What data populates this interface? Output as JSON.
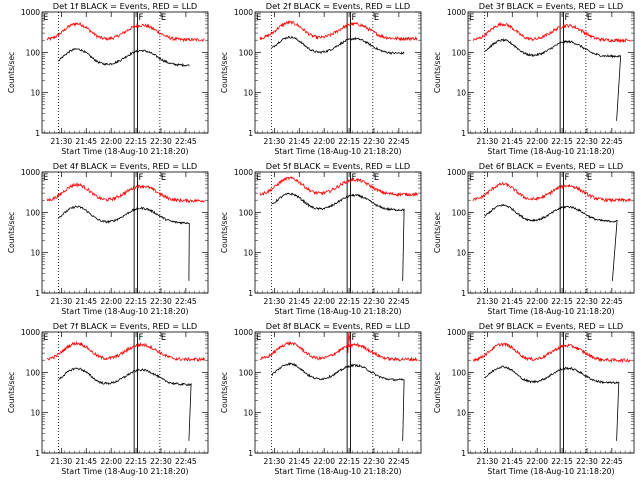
{
  "chart_data": {
    "type": "line",
    "ylabel": "Counts/sec",
    "xlabel": "Start Time (18-Aug-10 21:18:20)",
    "yscale": "log",
    "ylim": [
      1,
      1000
    ],
    "ytick_labels": [
      "1",
      "10",
      "100",
      "1000"
    ],
    "xlim_minutes": [
      0,
      100
    ],
    "xtick_labels": [
      "21:30",
      "21:45",
      "22:00",
      "22:15",
      "22:30",
      "22:45"
    ],
    "xtick_minutes": [
      11.67,
      26.67,
      41.67,
      56.67,
      71.67,
      86.67
    ],
    "colors": {
      "events": "#000000",
      "lld": "#ff0000"
    },
    "marker_letters": [
      "F",
      "E"
    ],
    "panels": [
      {
        "title": "Det 1f BLACK = Events, RED = LLD",
        "events_base": 48,
        "lld_base": 205,
        "dip_start": null,
        "dip_end": null,
        "drop_at": null,
        "end_at": 89,
        "spike": false,
        "dotted_x": [
          10,
          71
        ],
        "solid_x": [
          55.5,
          57.5
        ],
        "F_x": 57.5,
        "E_x": 71
      },
      {
        "title": "Det 2f BLACK = Events, RED = LLD",
        "events_base": 95,
        "lld_base": 220,
        "dip_start": null,
        "dip_end": null,
        "drop_at": null,
        "end_at": 90,
        "spike": false,
        "dotted_x": [
          10,
          71
        ],
        "solid_x": [
          55.5,
          57.5
        ],
        "F_x": 57.5,
        "E_x": 71
      },
      {
        "title": "Det 3f BLACK = Events, RED = LLD",
        "events_base": 80,
        "lld_base": 200,
        "dip_start": null,
        "dip_end": null,
        "drop_at": 89.5,
        "end_at": 92,
        "spike": false,
        "dotted_x": [
          10,
          71
        ],
        "solid_x": [
          55.5,
          57.5
        ],
        "F_x": 57.5,
        "E_x": 71
      },
      {
        "title": "Det 4f BLACK = Events, RED = LLD",
        "events_base": 55,
        "lld_base": 195,
        "dip_start": null,
        "dip_end": null,
        "drop_at": 88.5,
        "end_at": 89,
        "spike": false,
        "dotted_x": [
          10,
          71
        ],
        "solid_x": [
          55.5,
          57.5
        ],
        "F_x": 57.5,
        "E_x": 71
      },
      {
        "title": "Det 5f BLACK = Events, RED = LLD",
        "events_base": 115,
        "lld_base": 280,
        "dip_start": null,
        "dip_end": null,
        "drop_at": 89,
        "end_at": 90,
        "spike": false,
        "dotted_x": [
          10,
          71
        ],
        "solid_x": [
          55.5,
          57.5
        ],
        "F_x": 57.5,
        "E_x": 71
      },
      {
        "title": "Det 6f BLACK = Events, RED = LLD",
        "events_base": 60,
        "lld_base": 200,
        "dip_start": null,
        "dip_end": null,
        "drop_at": 87,
        "end_at": 90,
        "spike": false,
        "dotted_x": [
          10,
          71
        ],
        "solid_x": [
          55.5,
          57.5
        ],
        "F_x": 57.5,
        "E_x": 71
      },
      {
        "title": "Det 7f BLACK = Events, RED = LLD",
        "events_base": 50,
        "lld_base": 210,
        "dip_start": null,
        "dip_end": null,
        "drop_at": 88.5,
        "end_at": 90,
        "spike": false,
        "dotted_x": [
          10,
          71
        ],
        "solid_x": [
          55.5,
          57.5
        ],
        "F_x": 57.5,
        "E_x": 71
      },
      {
        "title": "Det 8f BLACK = Events, RED = LLD",
        "events_base": 65,
        "lld_base": 210,
        "dip_start": null,
        "dip_end": null,
        "drop_at": 89,
        "end_at": 90,
        "spike": true,
        "dotted_x": [
          10,
          71
        ],
        "solid_x": [
          55.5,
          57.5
        ],
        "F_x": 57.5,
        "E_x": 71
      },
      {
        "title": "Det 9f BLACK = Events, RED = LLD",
        "events_base": 55,
        "lld_base": 200,
        "dip_start": null,
        "dip_end": null,
        "drop_at": 89.5,
        "end_at": 91,
        "spike": false,
        "dotted_x": [
          10,
          71
        ],
        "solid_x": [
          55.5,
          57.5
        ],
        "F_x": 57.5,
        "E_x": 71
      }
    ]
  }
}
